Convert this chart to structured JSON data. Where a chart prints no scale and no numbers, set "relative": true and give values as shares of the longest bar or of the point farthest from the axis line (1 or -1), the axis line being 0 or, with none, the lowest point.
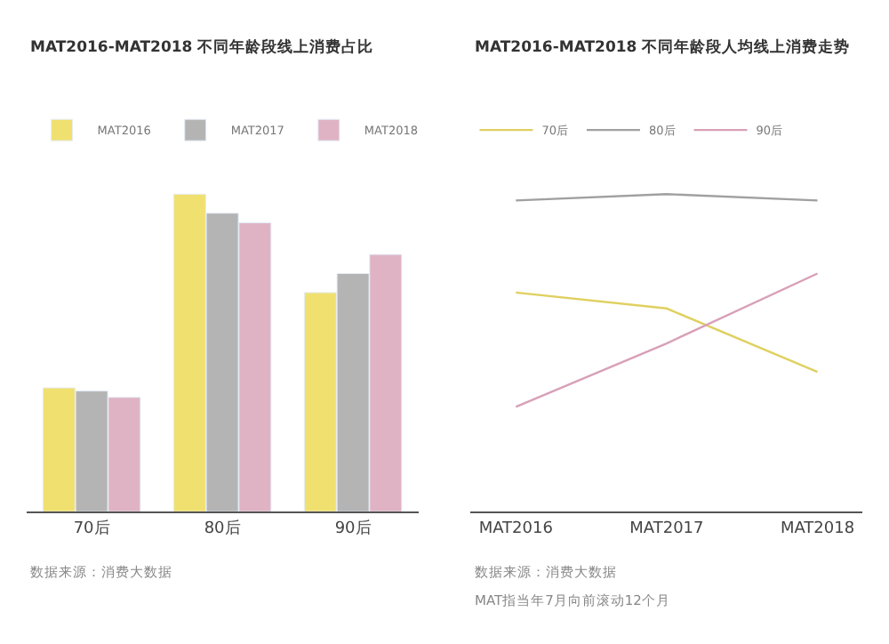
{
  "chart_data": [
    {
      "type": "bar",
      "title": "MAT2016-MAT2018 不同年龄段线上消费占比",
      "relative": true,
      "categories": [
        "70后",
        "80后",
        "90后"
      ],
      "legend": "top left",
      "series": [
        {
          "name": "MAT2016",
          "color": "#f0e070",
          "values": [
            0.39,
            1,
            0.69
          ]
        },
        {
          "name": "MAT2017",
          "color": "#b4b4b4",
          "values": [
            0.38,
            0.94,
            0.75
          ]
        },
        {
          "name": "MAT2018",
          "color": "#dfb3c4",
          "values": [
            0.36,
            0.91,
            0.81
          ]
        }
      ],
      "annotations": [
        "数据来源：消费大数据"
      ]
    },
    {
      "type": "line",
      "title": "MAT2016-MAT2018 不同年龄段人均线上消费走势",
      "relative": true,
      "categories": [
        "MAT2016",
        "MAT2017",
        "MAT2018"
      ],
      "legend": "top left",
      "marker": "none",
      "line_style": "solid",
      "series": [
        {
          "name": "70后",
          "color": "#e0d060",
          "values": [
            0.69,
            0.64,
            0.44
          ]
        },
        {
          "name": "80后",
          "color": "#a0a0a0",
          "values": [
            0.98,
            1,
            0.98
          ]
        },
        {
          "name": "90后",
          "color": "#d8a0b8",
          "values": [
            0.33,
            0.53,
            0.75
          ]
        }
      ],
      "annotations": [
        "数据来源：消费大数据",
        "MAT指当年7月向前滚动12个月"
      ]
    }
  ]
}
